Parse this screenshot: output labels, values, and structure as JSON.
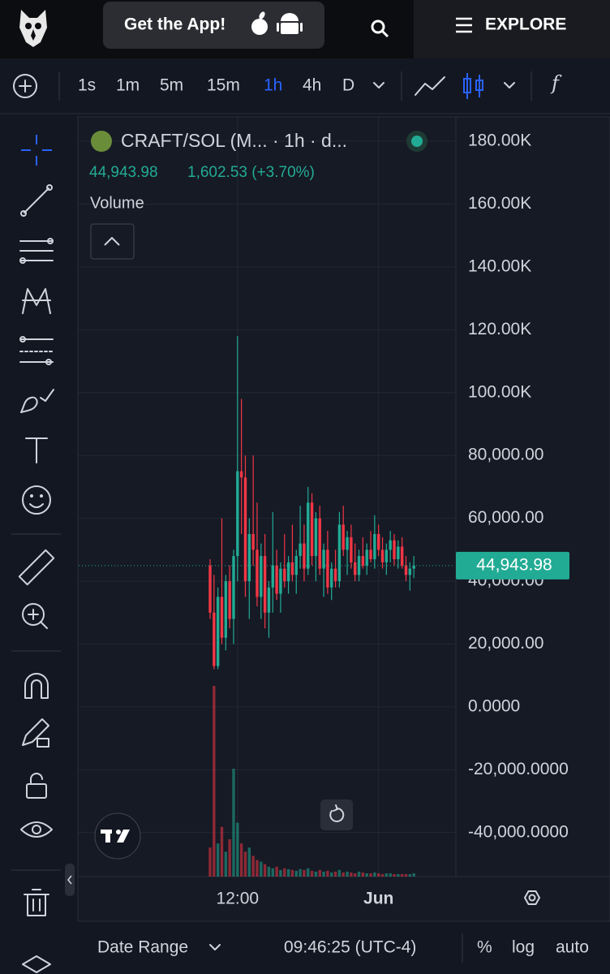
{
  "header": {
    "app_button": "Get the App!",
    "explore": "EXPLORE"
  },
  "toolbar": {
    "intervals": [
      "1s",
      "1m",
      "5m",
      "15m",
      "1h",
      "4h",
      "D"
    ]
  },
  "chart_data": {
    "type": "candlestick",
    "title": "CRAFT/SOL (M... · 1h · d...",
    "last_price": 44943.98,
    "last_price_label": "44,943.98",
    "change_label": "1,602.53 (+3.70%)",
    "volume_label": "Volume",
    "up_color": "#22ab94",
    "down_color": "#f23645",
    "grid": true,
    "categories": [
      null,
      null,
      null,
      null,
      null,
      null,
      null,
      "12:00",
      null,
      null,
      null,
      null,
      null,
      null,
      null,
      null,
      null,
      null,
      null,
      null,
      null,
      null,
      null,
      null,
      null,
      null,
      null,
      null,
      null,
      null,
      null,
      null,
      null,
      null,
      null,
      null,
      null,
      null,
      null,
      null,
      null,
      null,
      null,
      "Jun",
      null,
      null,
      null,
      null,
      null,
      null,
      null,
      null,
      null
    ],
    "open": [
      45000,
      30000,
      13000,
      35000,
      22000,
      40000,
      28000,
      48000,
      75000,
      73000,
      40000,
      55000,
      50000,
      35000,
      48000,
      30000,
      38000,
      45000,
      36000,
      44000,
      40000,
      46000,
      42000,
      48000,
      52000,
      44000,
      65000,
      48000,
      60000,
      44000,
      50000,
      38000,
      44000,
      40000,
      58000,
      50000,
      54000,
      46000,
      42000,
      48000,
      45000,
      50000,
      47000,
      55000,
      50000,
      46000,
      50000,
      53000,
      47000,
      51000,
      45000,
      42000,
      44000
    ],
    "high": [
      47000,
      42000,
      38000,
      60000,
      42000,
      45000,
      50000,
      118000,
      98000,
      80000,
      60000,
      80000,
      65000,
      52000,
      55000,
      40000,
      62000,
      50000,
      46000,
      55000,
      48000,
      58000,
      50000,
      64000,
      58000,
      70000,
      68000,
      62000,
      64000,
      52000,
      56000,
      46000,
      50000,
      62000,
      64000,
      56000,
      58000,
      52000,
      50000,
      54000,
      52000,
      56000,
      61000,
      58000,
      54000,
      52000,
      56000,
      55000,
      53000,
      54000,
      48000,
      46000,
      48000
    ],
    "low": [
      28000,
      12000,
      12000,
      20000,
      18000,
      25000,
      20000,
      40000,
      55000,
      35000,
      28000,
      45000,
      32000,
      28000,
      25000,
      22000,
      30000,
      34000,
      30000,
      38000,
      36000,
      40000,
      36000,
      44000,
      40000,
      42000,
      45000,
      40000,
      42000,
      35000,
      36000,
      34000,
      38000,
      38000,
      48000,
      42000,
      44000,
      40000,
      40000,
      44000,
      42000,
      46000,
      44000,
      48000,
      44000,
      42000,
      46000,
      45000,
      44000,
      44000,
      40000,
      37000,
      41000
    ],
    "close": [
      30000,
      13000,
      35000,
      22000,
      40000,
      28000,
      48000,
      75000,
      73000,
      40000,
      55000,
      50000,
      35000,
      48000,
      30000,
      38000,
      45000,
      36000,
      44000,
      40000,
      46000,
      42000,
      48000,
      52000,
      44000,
      65000,
      48000,
      60000,
      44000,
      50000,
      38000,
      44000,
      40000,
      58000,
      50000,
      54000,
      46000,
      42000,
      48000,
      45000,
      50000,
      47000,
      55000,
      50000,
      46000,
      50000,
      53000,
      47000,
      51000,
      45000,
      42000,
      44000,
      44943.98
    ],
    "volume": [
      35,
      230,
      40,
      60,
      30,
      45,
      130,
      65,
      40,
      30,
      35,
      25,
      20,
      18,
      15,
      12,
      10,
      12,
      8,
      10,
      9,
      8,
      7,
      9,
      8,
      10,
      7,
      6,
      8,
      6,
      7,
      5,
      6,
      8,
      5,
      6,
      5,
      4,
      6,
      5,
      4,
      4,
      5,
      4,
      3,
      4,
      4,
      3,
      3,
      3,
      3,
      3,
      4
    ],
    "ylim": [
      -54000,
      187500
    ],
    "yticks": [
      {
        "value": 180000,
        "label": "180.00K"
      },
      {
        "value": 160000,
        "label": "160.00K"
      },
      {
        "value": 140000,
        "label": "140.00K"
      },
      {
        "value": 120000,
        "label": "120.00K"
      },
      {
        "value": 100000,
        "label": "100.00K"
      },
      {
        "value": 80000,
        "label": "80,000.00"
      },
      {
        "value": 60000,
        "label": "60,000.00"
      },
      {
        "value": 40000,
        "label": "40,000.00"
      },
      {
        "value": 20000,
        "label": "20,000.00"
      },
      {
        "value": 0,
        "label": "0.0000"
      },
      {
        "value": -20000,
        "label": "-20,000.0000"
      },
      {
        "value": -40000,
        "label": "-40,000.0000"
      }
    ]
  },
  "footer": {
    "date_range": "Date Range",
    "time": "09:46:25 (UTC-4)",
    "percent": "%",
    "log": "log",
    "auto": "auto"
  }
}
